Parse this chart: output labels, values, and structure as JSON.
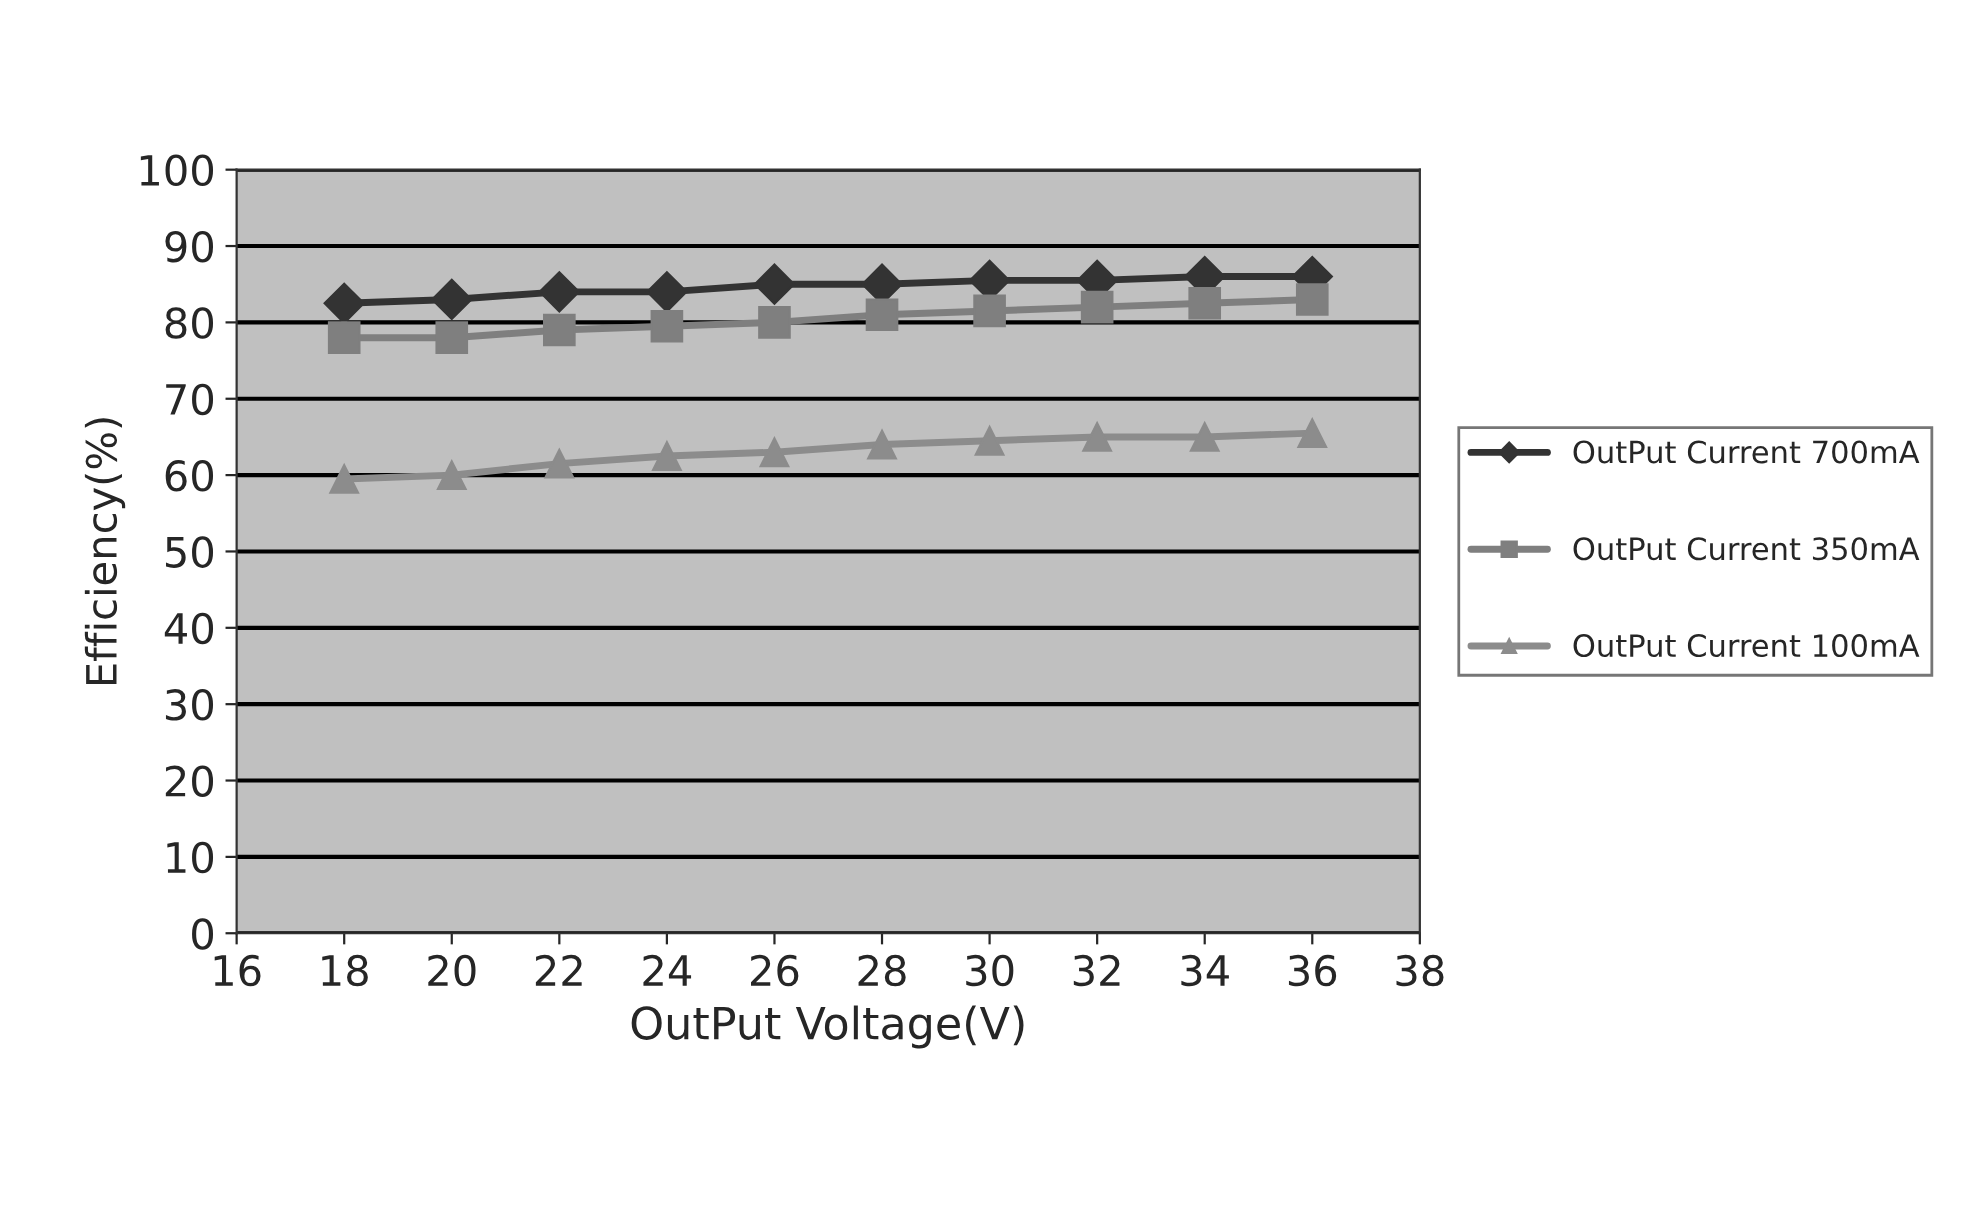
{
  "chart_data": {
    "type": "line",
    "xlabel": "OutPut Voltage(V)",
    "ylabel": "Efficiency(%)",
    "x": [
      18,
      20,
      22,
      24,
      26,
      28,
      30,
      32,
      34,
      36
    ],
    "series": [
      {
        "name": "OutPut Current 700mA",
        "color": "#333333",
        "marker": "diamond",
        "values": [
          82.5,
          83,
          84,
          84,
          85,
          85,
          85.5,
          85.5,
          86,
          86
        ]
      },
      {
        "name": "OutPut Current 350mA",
        "color": "#7f7f7f",
        "marker": "square",
        "values": [
          78,
          78,
          79,
          79.5,
          80,
          81,
          81.5,
          82,
          82.5,
          83
        ]
      },
      {
        "name": "OutPut Current 100mA",
        "color": "#8c8c8c",
        "marker": "triangle",
        "values": [
          59.5,
          60,
          61.5,
          62.5,
          63,
          64,
          64.5,
          65,
          65,
          65.5
        ]
      }
    ],
    "xlim": [
      16,
      38
    ],
    "xticks": [
      16,
      18,
      20,
      22,
      24,
      26,
      28,
      30,
      32,
      34,
      36,
      38
    ],
    "ylim": [
      0,
      100
    ],
    "yticks": [
      0,
      10,
      20,
      30,
      40,
      50,
      60,
      70,
      80,
      90,
      100
    ],
    "grid": "y",
    "legend": "right"
  }
}
